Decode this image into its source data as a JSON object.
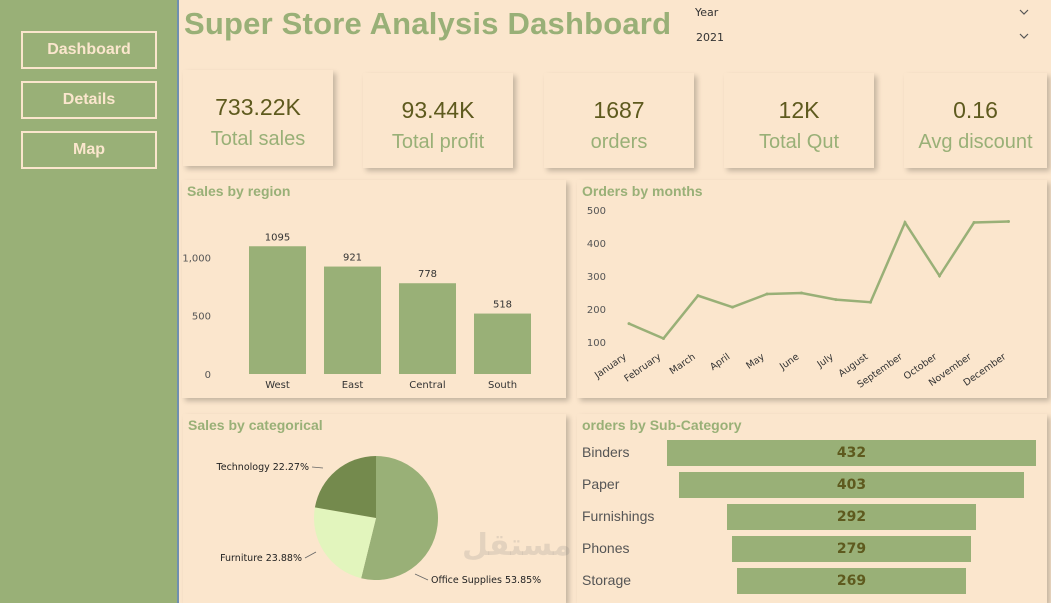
{
  "nav": {
    "dashboard": "Dashboard",
    "details": "Details",
    "map": "Map"
  },
  "title": "Super Store Analysis Dashboard",
  "slicer": {
    "label": "Year",
    "value": "2021"
  },
  "kpis": [
    {
      "value": "733.22K",
      "label": "Total sales"
    },
    {
      "value": "93.44K",
      "label": "Total profit"
    },
    {
      "value": "1687",
      "label": "orders"
    },
    {
      "value": "12K",
      "label": "Total Qut"
    },
    {
      "value": "0.16",
      "label": "Avg discount"
    }
  ],
  "panels": {
    "region": "Sales by region",
    "months": "Orders by months",
    "category": "Sales by categorical",
    "subcat": "orders by Sub-Category"
  },
  "watermark": "مستقل",
  "colors": {
    "accent": "#99b077",
    "bg": "#fbe6cd",
    "text": "#5e5a1e"
  },
  "chart_data": [
    {
      "type": "bar",
      "title": "Sales by region",
      "categories": [
        "West",
        "East",
        "Central",
        "South"
      ],
      "values": [
        1095,
        921,
        778,
        518
      ],
      "yticks": [
        0,
        500,
        1000
      ],
      "ytick_labels": [
        "0",
        "500",
        "1,000"
      ],
      "ylim": [
        0,
        1200
      ]
    },
    {
      "type": "line",
      "title": "Orders by months",
      "categories": [
        "January",
        "February",
        "March",
        "April",
        "May",
        "June",
        "July",
        "August",
        "September",
        "October",
        "November",
        "December"
      ],
      "values": [
        155,
        110,
        240,
        205,
        245,
        248,
        228,
        220,
        462,
        300,
        462,
        465
      ],
      "yticks": [
        100,
        200,
        300,
        400,
        500
      ],
      "ylim": [
        75,
        500
      ]
    },
    {
      "type": "pie",
      "title": "Sales by categorical",
      "slices": [
        {
          "name": "Office Supplies",
          "value": 53.85,
          "label": "Office Supplies 53.85%",
          "color": "#99b077"
        },
        {
          "name": "Furniture",
          "value": 23.88,
          "label": "Furniture 23.88%",
          "color": "#e2f5bd"
        },
        {
          "name": "Technology",
          "value": 22.27,
          "label": "Technology 22.27%",
          "color": "#748a4d"
        }
      ]
    },
    {
      "type": "bar",
      "title": "orders by Sub-Category",
      "categories": [
        "Binders",
        "Paper",
        "Furnishings",
        "Phones",
        "Storage"
      ],
      "values": [
        432,
        403,
        292,
        279,
        269
      ],
      "value_labels": [
        "432",
        "403",
        "292",
        "279",
        "269"
      ]
    }
  ]
}
